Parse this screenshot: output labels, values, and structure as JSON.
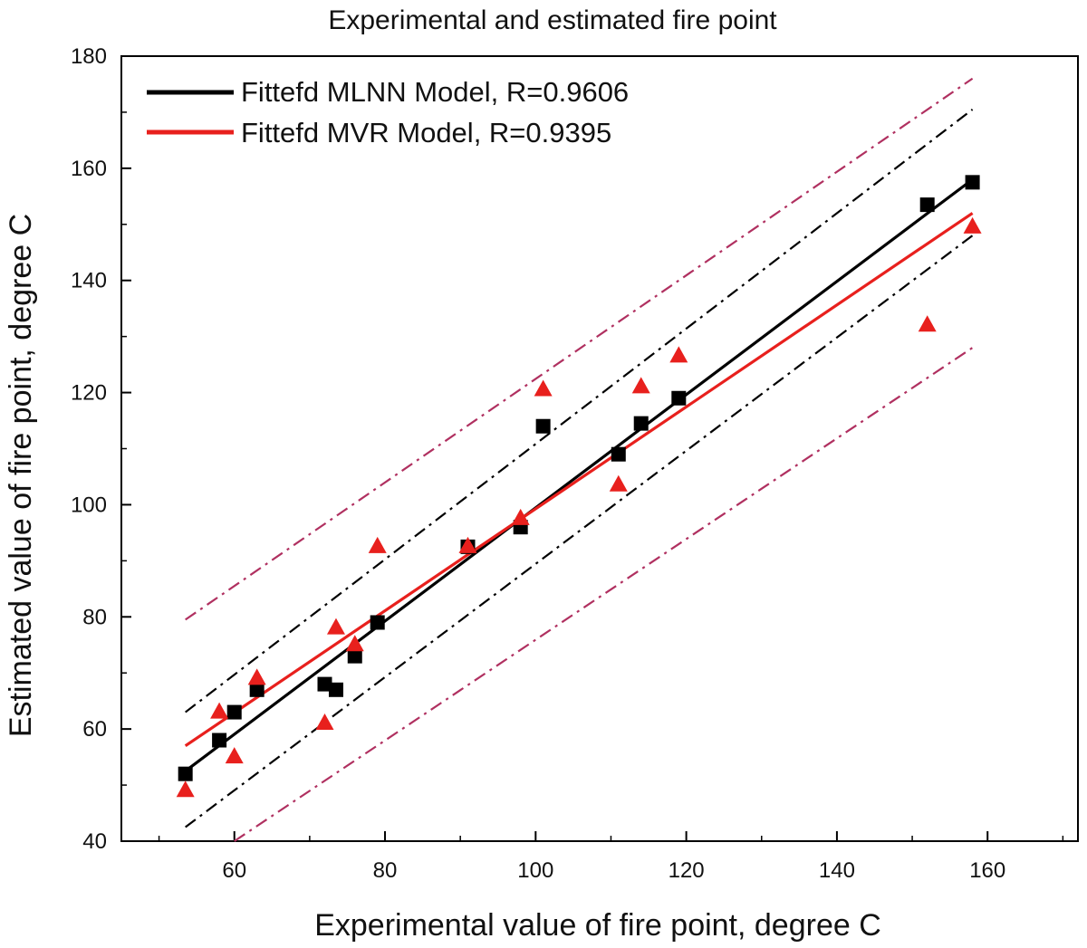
{
  "chart_data": {
    "type": "scatter",
    "title": "Experimental and estimated fire point",
    "xlabel": "Experimental value of fire point, degree C",
    "ylabel": "Estimated value of fire point, degree C",
    "xlim": [
      45,
      172
    ],
    "ylim": [
      40,
      180
    ],
    "xticks": [
      60,
      80,
      100,
      120,
      140,
      160
    ],
    "yticks": [
      40,
      60,
      80,
      100,
      120,
      140,
      160,
      180
    ],
    "x_minor_step": 10,
    "y_minor_step": 10,
    "grid": false,
    "legend_position": "top-left",
    "legend": [
      {
        "label": "Fittefd MLNN Model, R=0.9606",
        "color": "#000000"
      },
      {
        "label": "Fittefd MVR Model, R=0.9395",
        "color": "#e8201d"
      }
    ],
    "series": [
      {
        "marker": "square",
        "color": "#000000",
        "points": [
          [
            53.5,
            52
          ],
          [
            58,
            58
          ],
          [
            60,
            63
          ],
          [
            63,
            67
          ],
          [
            72,
            68
          ],
          [
            73.5,
            67
          ],
          [
            76,
            73
          ],
          [
            79,
            79
          ],
          [
            91,
            92.5
          ],
          [
            98,
            96
          ],
          [
            101,
            114
          ],
          [
            111,
            109
          ],
          [
            114,
            114.5
          ],
          [
            119,
            119
          ],
          [
            152,
            153.5
          ],
          [
            158,
            157.5
          ]
        ]
      },
      {
        "marker": "triangle",
        "color": "#e8201d",
        "points": [
          [
            53.5,
            49
          ],
          [
            58,
            63
          ],
          [
            60,
            55
          ],
          [
            63,
            69
          ],
          [
            72,
            61
          ],
          [
            73.5,
            78
          ],
          [
            76,
            75
          ],
          [
            79,
            92.5
          ],
          [
            91,
            92.5
          ],
          [
            98,
            97.5
          ],
          [
            101,
            120.5
          ],
          [
            111,
            103.5
          ],
          [
            114,
            121
          ],
          [
            119,
            126.5
          ],
          [
            152,
            132
          ],
          [
            158,
            149.5
          ]
        ]
      }
    ],
    "fit_lines": [
      {
        "color": "#000000",
        "style": "solid",
        "from": [
          53.5,
          52.5
        ],
        "to": [
          158,
          158
        ]
      },
      {
        "color": "#e8201d",
        "style": "solid",
        "from": [
          53.5,
          57
        ],
        "to": [
          158,
          152
        ]
      }
    ],
    "bound_lines": [
      {
        "color": "#000000",
        "style": "dash-dot",
        "from": [
          53.5,
          63
        ],
        "to": [
          158,
          170.5
        ]
      },
      {
        "color": "#000000",
        "style": "dash-dot",
        "from": [
          53.5,
          42.5
        ],
        "to": [
          158,
          148
        ]
      },
      {
        "color": "#b03060",
        "style": "dash-dot",
        "from": [
          53.5,
          79.5
        ],
        "to": [
          158,
          176
        ]
      },
      {
        "color": "#b03060",
        "style": "dash-dot",
        "from": [
          60,
          40
        ],
        "to": [
          158,
          128
        ]
      }
    ]
  }
}
